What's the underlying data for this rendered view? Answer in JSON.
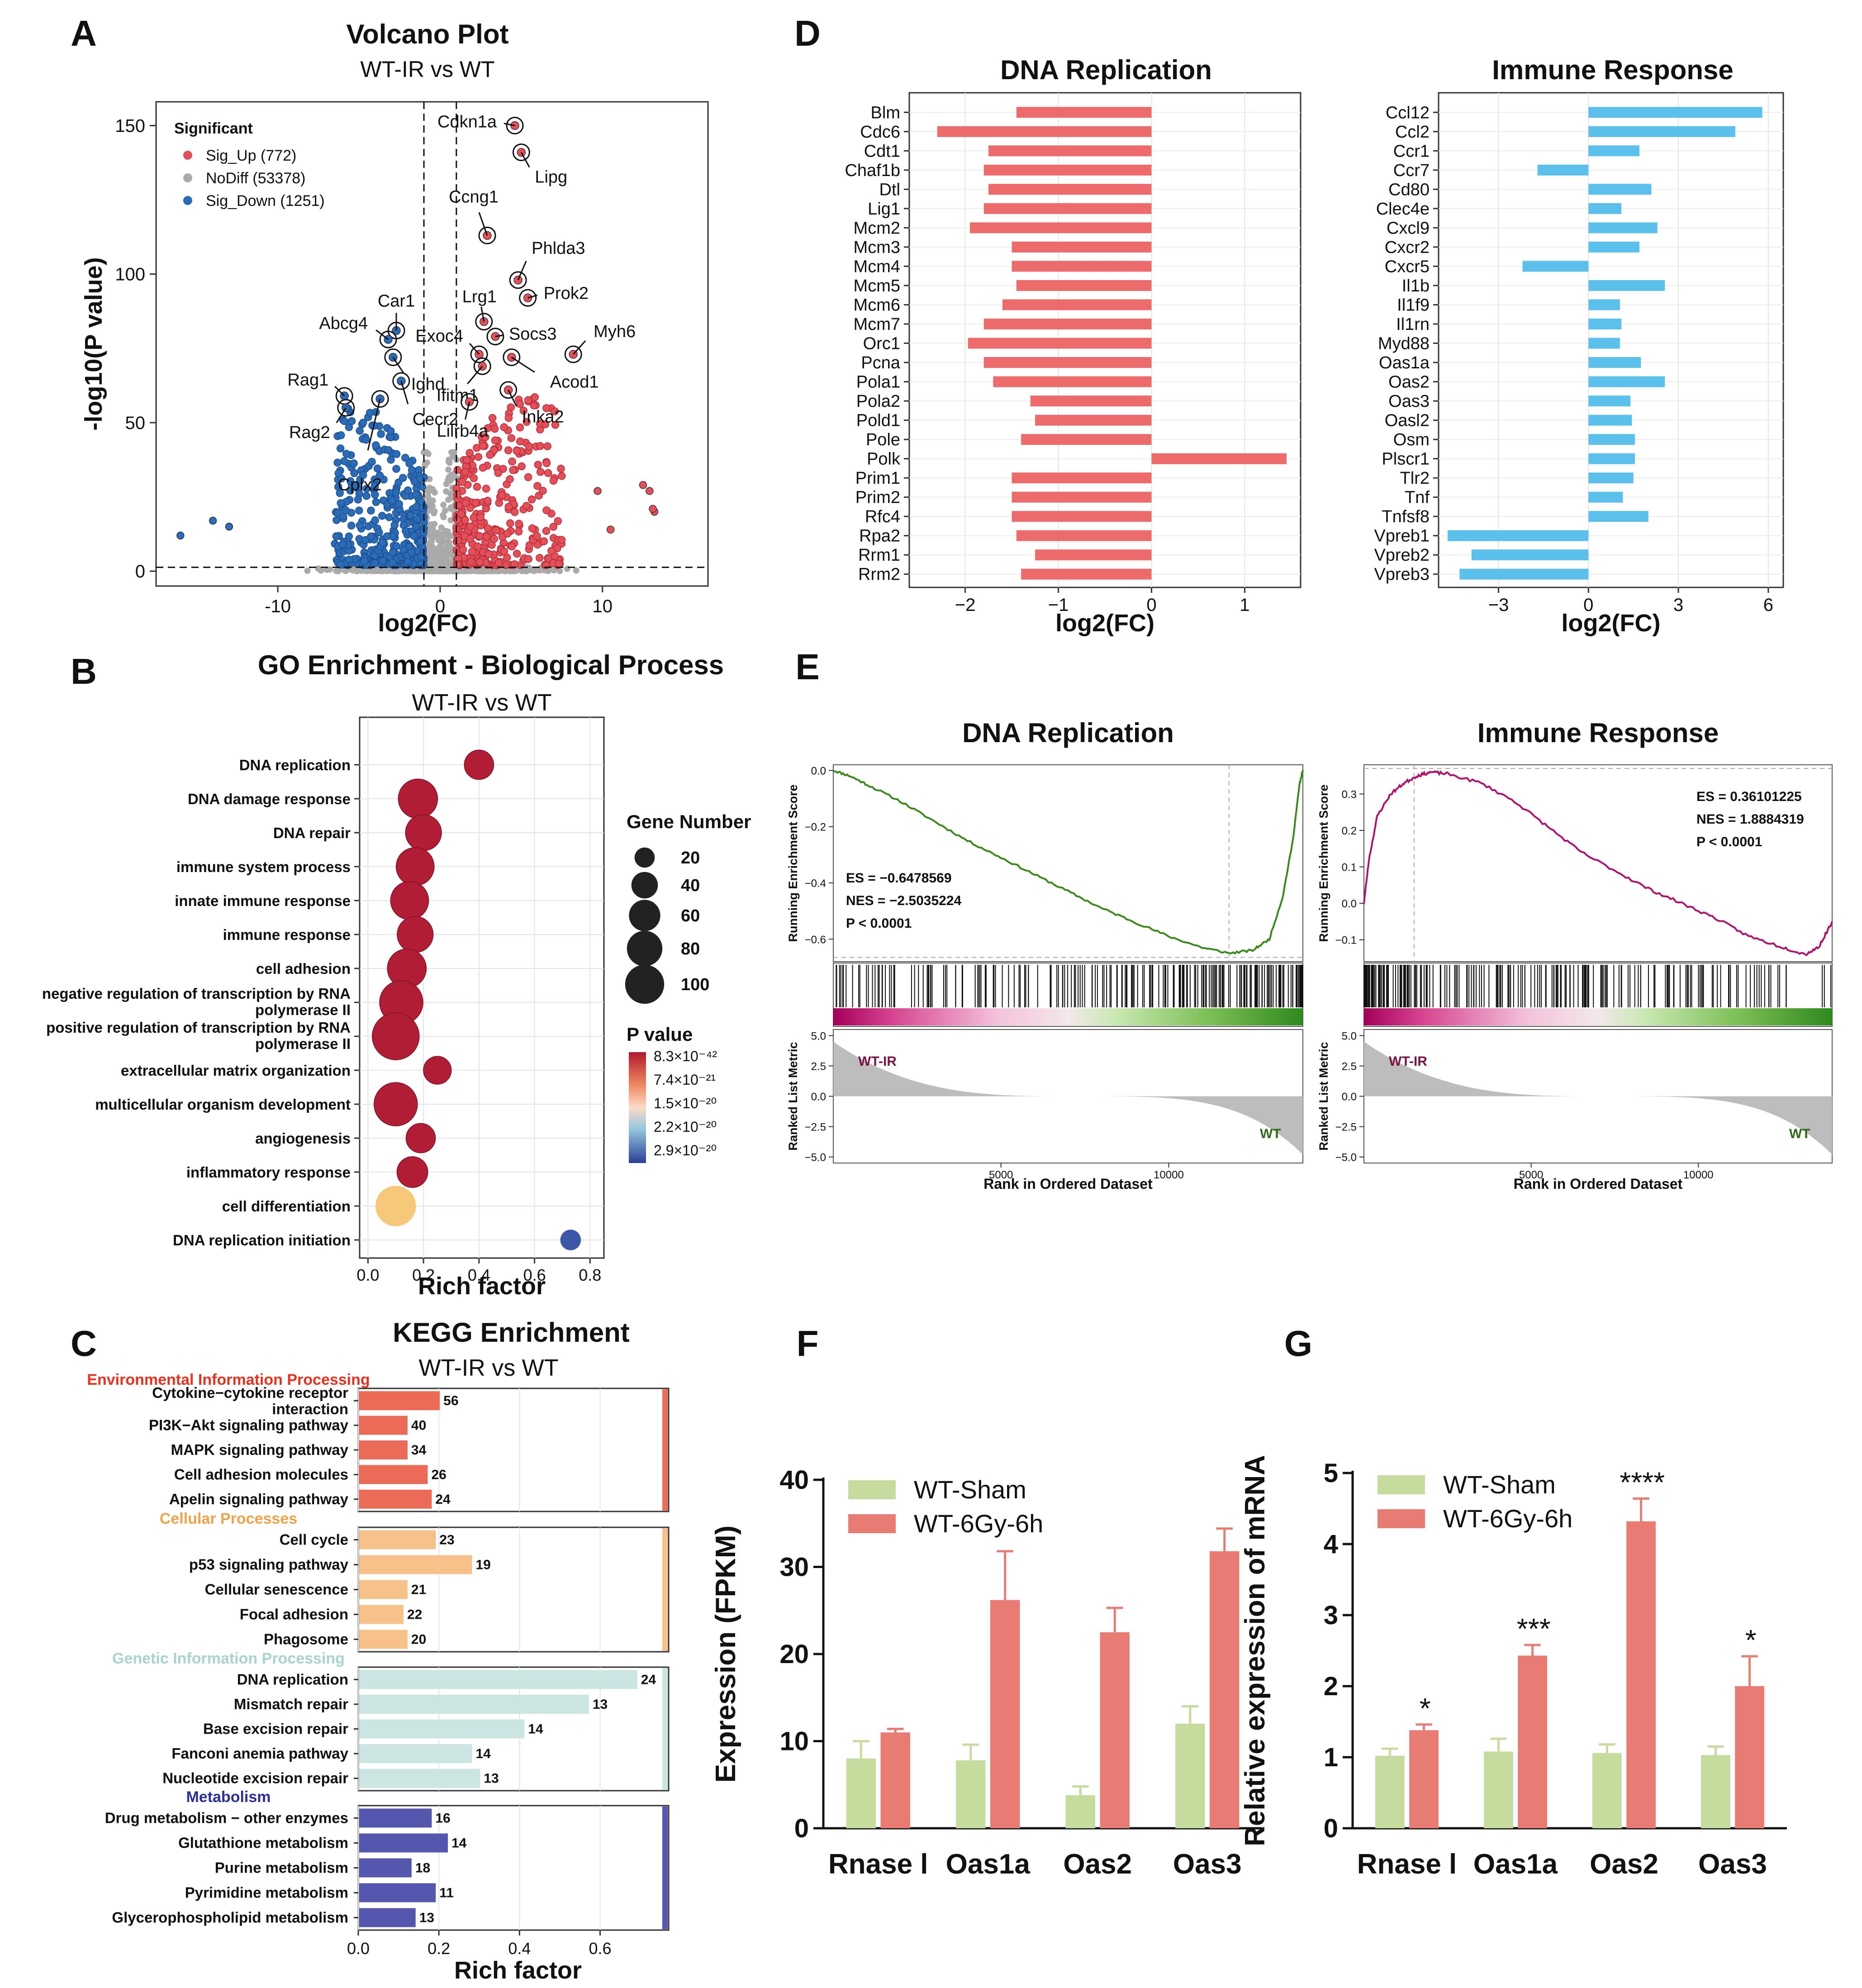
{
  "colors": {
    "up": "#e3505a",
    "nodiff": "#aaaaaa",
    "down": "#2b6cb8",
    "dnaBar": "#ee6b6b",
    "immBar": "#5bc0ec",
    "gseaDna": "#3a8a19",
    "gseaImm": "#b0126e",
    "sham": "#c6dc9f",
    "irr": "#e97c72",
    "envProc": "#ec6b57",
    "cellProc": "#f7c28a",
    "genInfo": "#cbe6e2",
    "metab": "#5457ad",
    "envLabel": "#e8321f",
    "cellLabel": "#f2a349",
    "genLabel": "#a8d3ce",
    "metabLabel": "#2a2f9a"
  },
  "panel_letters": [
    "A",
    "B",
    "C",
    "D",
    "E",
    "F",
    "G"
  ],
  "chart_data": [
    {
      "id": "A",
      "type": "scatter",
      "title": "Volcano Plot",
      "subtitle": "WT-IR vs WT",
      "xlabel": "log2(FC)",
      "ylabel": "-log10(P value)",
      "xlim": [
        -17.5,
        16.5
      ],
      "ylim": [
        -5,
        158
      ],
      "xticks": [
        -10,
        0,
        10
      ],
      "yticks": [
        0,
        50,
        100,
        150
      ],
      "thresholds": {
        "x": [
          -1,
          1
        ],
        "y": 1.3
      },
      "legend": {
        "title": "Significant",
        "entries": [
          {
            "key": "up",
            "label": "Sig_Up (772)"
          },
          {
            "key": "nodiff",
            "label": "NoDiff (53378)"
          },
          {
            "key": "down",
            "label": "Sig_Down (1251)"
          }
        ]
      },
      "labeled_genes": [
        {
          "gene": "Cdkn1a",
          "x": 4.6,
          "y": 150,
          "dir": "up"
        },
        {
          "gene": "Lipg",
          "x": 5.0,
          "y": 141,
          "dir": "up"
        },
        {
          "gene": "Ccng1",
          "x": 2.9,
          "y": 113,
          "dir": "up"
        },
        {
          "gene": "Phlda3",
          "x": 4.8,
          "y": 98,
          "dir": "up"
        },
        {
          "gene": "Prok2",
          "x": 5.4,
          "y": 92,
          "dir": "up"
        },
        {
          "gene": "Lrg1",
          "x": 2.7,
          "y": 84,
          "dir": "up"
        },
        {
          "gene": "Socs3",
          "x": 3.4,
          "y": 79,
          "dir": "up"
        },
        {
          "gene": "Exoc4",
          "x": 2.4,
          "y": 73,
          "dir": "up"
        },
        {
          "gene": "Myh6",
          "x": 8.2,
          "y": 73,
          "dir": "up"
        },
        {
          "gene": "Acod1",
          "x": 4.4,
          "y": 72,
          "dir": "up"
        },
        {
          "gene": "Ifitm1",
          "x": 2.6,
          "y": 69,
          "dir": "up"
        },
        {
          "gene": "Inka2",
          "x": 4.2,
          "y": 61,
          "dir": "up"
        },
        {
          "gene": "Lilrb4a",
          "x": 1.8,
          "y": 57,
          "dir": "up"
        },
        {
          "gene": "Car1",
          "x": -2.7,
          "y": 81,
          "dir": "down"
        },
        {
          "gene": "Abcg4",
          "x": -3.2,
          "y": 78,
          "dir": "down"
        },
        {
          "gene": "Ighd",
          "x": -2.9,
          "y": 72,
          "dir": "down"
        },
        {
          "gene": "Rag1",
          "x": -5.9,
          "y": 59,
          "dir": "down"
        },
        {
          "gene": "Rag2",
          "x": -5.8,
          "y": 55,
          "dir": "down"
        },
        {
          "gene": "Cecr2",
          "x": -2.4,
          "y": 64,
          "dir": "down"
        },
        {
          "gene": "Cplx2",
          "x": -3.7,
          "y": 58,
          "dir": "down"
        }
      ],
      "sparse_points": [
        {
          "x": -16,
          "y": 12,
          "dir": "down"
        },
        {
          "x": -14,
          "y": 17,
          "dir": "down"
        },
        {
          "x": -13,
          "y": 15,
          "dir": "down"
        },
        {
          "x": 12.5,
          "y": 29,
          "dir": "up"
        },
        {
          "x": 12.9,
          "y": 27,
          "dir": "up"
        },
        {
          "x": 13.2,
          "y": 20,
          "dir": "up"
        },
        {
          "x": 13.1,
          "y": 21,
          "dir": "up"
        },
        {
          "x": 10.5,
          "y": 14,
          "dir": "up"
        },
        {
          "x": 9.7,
          "y": 27,
          "dir": "up"
        }
      ]
    },
    {
      "id": "B",
      "type": "scatter",
      "title": "GO Enrichment - Biological Process",
      "subtitle": "WT-IR vs WT",
      "xlabel": "Rich factor",
      "xlim": [
        -0.03,
        0.85
      ],
      "xticks": [
        0,
        0.2,
        0.4,
        0.6,
        0.8
      ],
      "xticklabels": [
        "0.0",
        "0.2",
        "0.4",
        "0.6",
        "0.8"
      ],
      "size_legend": {
        "title": "Gene Number",
        "values": [
          20,
          40,
          60,
          80,
          100
        ]
      },
      "color_legend": {
        "title": "P value",
        "labels": [
          "8.3×10⁻⁴²",
          "7.4×10⁻²¹",
          "1.5×10⁻²⁰",
          "2.2×10⁻²⁰",
          "2.9×10⁻²⁰"
        ]
      },
      "terms": [
        {
          "term": "DNA replication",
          "rich": 0.4,
          "genes": 40,
          "cval": 0.0
        },
        {
          "term": "DNA damage response",
          "rich": 0.18,
          "genes": 80,
          "cval": 0.0
        },
        {
          "term": "DNA repair",
          "rich": 0.2,
          "genes": 65,
          "cval": 0.0
        },
        {
          "term": "immune system process",
          "rich": 0.17,
          "genes": 74,
          "cval": 0.0
        },
        {
          "term": "innate immune response",
          "rich": 0.15,
          "genes": 74,
          "cval": 0.0
        },
        {
          "term": "immune response",
          "rich": 0.17,
          "genes": 65,
          "cval": 0.0
        },
        {
          "term": "cell adhesion",
          "rich": 0.14,
          "genes": 78,
          "cval": 0.0
        },
        {
          "term": "negative regulation of transcription by RNA polymerase II",
          "rich": 0.12,
          "genes": 100,
          "cval": 0.0
        },
        {
          "term": "positive regulation of transcription by RNA polymerase II",
          "rich": 0.1,
          "genes": 120,
          "cval": 0.0
        },
        {
          "term": "extracellular matrix organization",
          "rich": 0.25,
          "genes": 35,
          "cval": 0.0
        },
        {
          "term": "multicellular organism development",
          "rich": 0.1,
          "genes": 100,
          "cval": 0.0
        },
        {
          "term": "angiogenesis",
          "rich": 0.19,
          "genes": 40,
          "cval": 0.0
        },
        {
          "term": "inflammatory response",
          "rich": 0.16,
          "genes": 45,
          "cval": 0.0
        },
        {
          "term": "cell differentiation",
          "rich": 0.1,
          "genes": 85,
          "cval": 0.4
        },
        {
          "term": "DNA replication initiation",
          "rich": 0.73,
          "genes": 16,
          "cval": 1.0
        }
      ]
    },
    {
      "id": "C",
      "type": "bar",
      "title": "KEGG Enrichment",
      "subtitle": "WT-IR vs WT",
      "xlabel": "Rich factor",
      "xlim": [
        0,
        0.77
      ],
      "xticks": [
        0,
        0.2,
        0.4,
        0.6
      ],
      "xticklabels": [
        "0.0",
        "0.2",
        "0.4",
        "0.6"
      ],
      "groups": [
        {
          "name": "Environmental Information Processing",
          "color": "envProc",
          "label_color": "envLabel",
          "items": [
            {
              "term": "Cytokine−cytokine receptor interaction",
              "rich": 0.2,
              "count": 56
            },
            {
              "term": "PI3K−Akt signaling pathway",
              "rich": 0.12,
              "count": 40
            },
            {
              "term": "MAPK signaling pathway",
              "rich": 0.12,
              "count": 34
            },
            {
              "term": "Cell adhesion molecules",
              "rich": 0.17,
              "count": 26
            },
            {
              "term": "Apelin signaling pathway",
              "rich": 0.18,
              "count": 24
            }
          ]
        },
        {
          "name": "Cellular Processes",
          "color": "cellProc",
          "label_color": "cellLabel",
          "items": [
            {
              "term": "Cell cycle",
              "rich": 0.19,
              "count": 23
            },
            {
              "term": "p53 signaling pathway",
              "rich": 0.28,
              "count": 19
            },
            {
              "term": "Cellular senescence",
              "rich": 0.12,
              "count": 21
            },
            {
              "term": "Focal adhesion",
              "rich": 0.11,
              "count": 22
            },
            {
              "term": "Phagosome",
              "rich": 0.12,
              "count": 20
            }
          ]
        },
        {
          "name": "Genetic Information Processing",
          "color": "genInfo",
          "label_color": "genLabel",
          "items": [
            {
              "term": "DNA replication",
              "rich": 0.69,
              "count": 24
            },
            {
              "term": "Mismatch repair",
              "rich": 0.57,
              "count": 13
            },
            {
              "term": "Base excision repair",
              "rich": 0.41,
              "count": 14
            },
            {
              "term": "Fanconi anemia pathway",
              "rich": 0.28,
              "count": 14
            },
            {
              "term": "Nucleotide excision repair",
              "rich": 0.3,
              "count": 13
            }
          ]
        },
        {
          "name": "Metabolism",
          "color": "metab",
          "label_color": "metabLabel",
          "items": [
            {
              "term": "Drug metabolism − other enzymes",
              "rich": 0.18,
              "count": 16
            },
            {
              "term": "Glutathione metabolism",
              "rich": 0.22,
              "count": 14
            },
            {
              "term": "Purine metabolism",
              "rich": 0.13,
              "count": 18
            },
            {
              "term": "Pyrimidine metabolism",
              "rich": 0.19,
              "count": 11
            },
            {
              "term": "Glycerophospholipid metabolism",
              "rich": 0.14,
              "count": 13
            }
          ]
        }
      ]
    },
    {
      "id": "D1",
      "type": "bar",
      "title": "DNA Replication",
      "xlabel": "log2(FC)",
      "xlim": [
        -2.6,
        1.6
      ],
      "xticks": [
        -2,
        -1,
        0,
        1
      ],
      "categories": [
        "Blm",
        "Cdc6",
        "Cdt1",
        "Chaf1b",
        "Dtl",
        "Lig1",
        "Mcm2",
        "Mcm3",
        "Mcm4",
        "Mcm5",
        "Mcm6",
        "Mcm7",
        "Orc1",
        "Pcna",
        "Pola1",
        "Pola2",
        "Pold1",
        "Pole",
        "Polk",
        "Prim1",
        "Prim2",
        "Rfc4",
        "Rpa2",
        "Rrm1",
        "Rrm2"
      ],
      "values": [
        -1.45,
        -2.3,
        -1.75,
        -1.8,
        -1.75,
        -1.8,
        -1.95,
        -1.5,
        -1.5,
        -1.45,
        -1.6,
        -1.8,
        -1.97,
        -1.8,
        -1.7,
        -1.3,
        -1.25,
        -1.4,
        1.45,
        -1.5,
        -1.5,
        -1.5,
        -1.45,
        -1.25,
        -1.4
      ]
    },
    {
      "id": "D2",
      "type": "bar",
      "title": "Immune Response",
      "xlabel": "log2(FC)",
      "xlim": [
        -5.0,
        6.5
      ],
      "xticks": [
        -3,
        0,
        3,
        6
      ],
      "categories": [
        "Ccl12",
        "Ccl2",
        "Ccr1",
        "Ccr7",
        "Cd80",
        "Clec4e",
        "Cxcl9",
        "Cxcr2",
        "Cxcr5",
        "Il1b",
        "Il1f9",
        "Il1rn",
        "Myd88",
        "Oas1a",
        "Oas2",
        "Oas3",
        "Oasl2",
        "Osm",
        "Plscr1",
        "Tlr2",
        "Tnf",
        "Tnfsf8",
        "Vpreb1",
        "Vpreb2",
        "Vpreb3"
      ],
      "values": [
        5.8,
        4.9,
        1.7,
        -1.7,
        2.1,
        1.1,
        2.3,
        1.7,
        -2.2,
        2.55,
        1.05,
        1.1,
        1.05,
        1.75,
        2.55,
        1.4,
        1.45,
        1.55,
        1.55,
        1.5,
        1.15,
        2.0,
        -4.7,
        -3.9,
        -4.3
      ]
    },
    {
      "id": "E1",
      "type": "line",
      "title": "DNA Replication",
      "ylabel_top": "Running Enrichment Score",
      "ylabel_bottom": "Ranked List Metric",
      "xlabel": "Rank in Ordered Dataset",
      "yticks_top": [
        0.0,
        -0.2,
        -0.4,
        -0.6
      ],
      "yticks_top_labels": [
        "0.0",
        "−0.2",
        "−0.4",
        "−0.6"
      ],
      "ylim_top": [
        -0.68,
        0.02
      ],
      "yticks_bottom": [
        5.0,
        2.5,
        0.0,
        -2.5,
        -5.0
      ],
      "yticks_bottom_labels": [
        "5.0",
        "2.5",
        "0.0",
        "−2.5",
        "−5.0"
      ],
      "xticks": [
        5000,
        10000
      ],
      "xlim": [
        0,
        14000
      ],
      "es_curve": [
        [
          0,
          0
        ],
        [
          500,
          -0.02
        ],
        [
          1000,
          -0.05
        ],
        [
          2000,
          -0.11
        ],
        [
          3000,
          -0.18
        ],
        [
          4000,
          -0.25
        ],
        [
          5000,
          -0.31
        ],
        [
          6000,
          -0.37
        ],
        [
          7000,
          -0.43
        ],
        [
          8000,
          -0.49
        ],
        [
          9000,
          -0.54
        ],
        [
          10000,
          -0.59
        ],
        [
          11000,
          -0.63
        ],
        [
          11800,
          -0.65
        ],
        [
          12500,
          -0.64
        ],
        [
          13000,
          -0.6
        ],
        [
          13400,
          -0.45
        ],
        [
          13700,
          -0.25
        ],
        [
          13900,
          -0.05
        ],
        [
          14000,
          0.0
        ]
      ],
      "peak_rank": 11800,
      "stats": [
        "ES = −0.6478569",
        "NES = −2.5035224",
        "P <  0.0001"
      ],
      "pos_label": "WT-IR",
      "neg_label": "WT"
    },
    {
      "id": "E2",
      "type": "line",
      "title": "Immune Response",
      "ylabel_top": "Running Enrichment Score",
      "ylabel_bottom": "Ranked List Metric",
      "xlabel": "Rank in Ordered Dataset",
      "yticks_top": [
        0.3,
        0.2,
        0.1,
        0.0,
        -0.1
      ],
      "yticks_top_labels": [
        "0.3",
        "0.2",
        "0.1",
        "0.0",
        "−0.1"
      ],
      "ylim_top": [
        -0.16,
        0.38
      ],
      "yticks_bottom": [
        5.0,
        2.5,
        0.0,
        -2.5,
        -5.0
      ],
      "yticks_bottom_labels": [
        "5.0",
        "2.5",
        "0.0",
        "−2.5",
        "−5.0"
      ],
      "xticks": [
        5000,
        10000
      ],
      "xlim": [
        0,
        14000
      ],
      "es_curve": [
        [
          0,
          0
        ],
        [
          150,
          0.12
        ],
        [
          400,
          0.24
        ],
        [
          800,
          0.3
        ],
        [
          1200,
          0.33
        ],
        [
          1600,
          0.35
        ],
        [
          2000,
          0.36
        ],
        [
          2500,
          0.355
        ],
        [
          3500,
          0.33
        ],
        [
          4500,
          0.28
        ],
        [
          5500,
          0.21
        ],
        [
          6500,
          0.14
        ],
        [
          7500,
          0.09
        ],
        [
          8500,
          0.04
        ],
        [
          9500,
          0.0
        ],
        [
          10500,
          -0.04
        ],
        [
          11500,
          -0.09
        ],
        [
          12500,
          -0.12
        ],
        [
          13200,
          -0.14
        ],
        [
          13600,
          -0.12
        ],
        [
          14000,
          -0.05
        ]
      ],
      "peak_rank": 1500,
      "stats": [
        "ES = 0.36101225",
        "NES = 1.8884319",
        "P <  0.0001"
      ],
      "pos_label": "WT-IR",
      "neg_label": "WT"
    },
    {
      "id": "F",
      "type": "bar",
      "ylabel": "Expression (FPKM)",
      "ylim": [
        0,
        40
      ],
      "yticks": [
        0,
        10,
        20,
        30,
        40
      ],
      "categories": [
        "Rnase l",
        "Oas1a",
        "Oas2",
        "Oas3"
      ],
      "series": [
        {
          "name": "WT-Sham",
          "color": "sham",
          "values": [
            8.0,
            7.8,
            3.8,
            12.0
          ],
          "errors": [
            2.0,
            1.8,
            1.0,
            2.0
          ]
        },
        {
          "name": "WT-6Gy-6h",
          "color": "irr",
          "values": [
            11.0,
            26.2,
            22.5,
            31.8
          ],
          "errors": [
            0.4,
            5.6,
            2.8,
            2.6
          ]
        }
      ]
    },
    {
      "id": "G",
      "type": "bar",
      "ylabel": "Relative expression of mRNA",
      "ylim": [
        0,
        5
      ],
      "yticks": [
        0,
        1,
        2,
        3,
        4,
        5
      ],
      "categories": [
        "Rnase l",
        "Oas1a",
        "Oas2",
        "Oas3"
      ],
      "series": [
        {
          "name": "WT-Sham",
          "color": "sham",
          "values": [
            1.02,
            1.08,
            1.06,
            1.03
          ],
          "errors": [
            0.1,
            0.18,
            0.12,
            0.12
          ]
        },
        {
          "name": "WT-6Gy-6h",
          "color": "irr",
          "values": [
            1.38,
            2.43,
            4.32,
            2.0
          ],
          "errors": [
            0.08,
            0.15,
            0.32,
            0.42
          ]
        }
      ],
      "significance": [
        "*",
        "***",
        "****",
        "*"
      ]
    }
  ]
}
